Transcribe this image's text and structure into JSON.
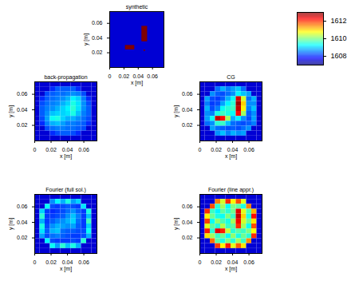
{
  "chart_data": [
    {
      "type": "heatmap",
      "title": "synthetic",
      "x_label": "x [m]",
      "y_label": "y [m]",
      "xlim": [
        0,
        0.076
      ],
      "ylim": [
        0,
        0.076
      ],
      "xticks": [
        0,
        0.02,
        0.04,
        0.06
      ],
      "yticks": [
        0.02,
        0.04,
        0.06
      ],
      "shapes": [
        {
          "x1": 0,
          "x2": 0.076,
          "y1": 0,
          "y2": 0.076,
          "value": 1607.5
        },
        {
          "x1": 0.022,
          "x2": 0.035,
          "y1": 0.024,
          "y2": 0.03,
          "value": 1613
        },
        {
          "x1": 0.045,
          "x2": 0.053,
          "y1": 0.035,
          "y2": 0.056,
          "value": 1613
        },
        {
          "x1": 0.048,
          "x2": 0.05,
          "y1": 0.022,
          "y2": 0.024,
          "value": 1613
        }
      ]
    },
    {
      "type": "heatmap",
      "title": "back-propagation",
      "x_label": "x [m]",
      "y_label": "y [m]",
      "xlim": [
        0,
        0.076
      ],
      "ylim": [
        0,
        0.076
      ],
      "xticks": [
        0,
        0.02,
        0.04,
        0.06
      ],
      "yticks": [
        0.02,
        0.04,
        0.06
      ],
      "z": [
        [
          1607.5,
          1607.5,
          1607.5,
          1607.5,
          1607.5,
          1607.5,
          1607.5,
          1607.5,
          1607.5,
          1607.5,
          1607.5,
          1607.5
        ],
        [
          1607.5,
          1607.5,
          1607.5,
          1608,
          1608.3,
          1608.3,
          1608.3,
          1608.3,
          1608,
          1607.5,
          1607.5,
          1607.5
        ],
        [
          1607.5,
          1607.5,
          1608.2,
          1608.3,
          1608.4,
          1608.4,
          1608.5,
          1608.6,
          1608.5,
          1608.2,
          1607.5,
          1607.5
        ],
        [
          1607.5,
          1608,
          1608.3,
          1608.4,
          1608.5,
          1608.6,
          1608.8,
          1609.2,
          1609,
          1608.5,
          1608,
          1607.5
        ],
        [
          1607.5,
          1608.2,
          1608.4,
          1608.5,
          1608.6,
          1608.8,
          1609,
          1609.4,
          1609.1,
          1608.6,
          1608.2,
          1607.5
        ],
        [
          1607.5,
          1608.3,
          1608.5,
          1608.6,
          1608.8,
          1609,
          1609.2,
          1609.5,
          1609.1,
          1608.6,
          1608.3,
          1607.5
        ],
        [
          1607.5,
          1608.3,
          1608.6,
          1608.9,
          1609,
          1609,
          1609.1,
          1609.4,
          1608.9,
          1608.5,
          1608.3,
          1607.5
        ],
        [
          1607.5,
          1608.2,
          1608.7,
          1609.3,
          1609.4,
          1609,
          1608.8,
          1608.8,
          1608.6,
          1608.4,
          1608.2,
          1607.5
        ],
        [
          1607.5,
          1608,
          1608.5,
          1608.8,
          1608.9,
          1608.7,
          1608.5,
          1608.5,
          1608.4,
          1608.3,
          1608,
          1607.5
        ],
        [
          1607.5,
          1607.5,
          1608.2,
          1608.4,
          1608.5,
          1608.5,
          1608.4,
          1608.4,
          1608.3,
          1608.2,
          1607.5,
          1607.5
        ],
        [
          1607.5,
          1607.5,
          1607.5,
          1608,
          1608.2,
          1608.3,
          1608.3,
          1608.2,
          1608,
          1607.5,
          1607.5,
          1607.5
        ],
        [
          1607.5,
          1607.5,
          1607.5,
          1607.5,
          1607.5,
          1607.5,
          1607.5,
          1607.5,
          1607.5,
          1607.5,
          1607.5,
          1607.5
        ]
      ]
    },
    {
      "type": "heatmap",
      "title": "CG",
      "x_label": "x [m]",
      "y_label": "y [m]",
      "xlim": [
        0,
        0.076
      ],
      "ylim": [
        0,
        0.076
      ],
      "xticks": [
        0,
        0.02,
        0.04,
        0.06
      ],
      "yticks": [
        0.02,
        0.04,
        0.06
      ],
      "z": [
        [
          1607.5,
          1607.5,
          1607.5,
          1607.5,
          1607.5,
          1607.5,
          1607.5,
          1607.5,
          1607.5,
          1607.5,
          1607.5,
          1607.5
        ],
        [
          1607.5,
          1607.5,
          1607.5,
          1608.4,
          1608.8,
          1608.5,
          1608.7,
          1608.9,
          1608.4,
          1607.5,
          1607.5,
          1607.5
        ],
        [
          1607.5,
          1607.5,
          1608.6,
          1608.3,
          1608.2,
          1608.4,
          1608.6,
          1609.2,
          1608.9,
          1608.7,
          1607.5,
          1607.5
        ],
        [
          1607.5,
          1608.7,
          1608.2,
          1608.1,
          1608.3,
          1608.8,
          1609.3,
          1612.5,
          1610.5,
          1608.4,
          1608.8,
          1607.5
        ],
        [
          1607.5,
          1608.5,
          1608.1,
          1608.2,
          1608.7,
          1609.2,
          1609.5,
          1612.8,
          1611,
          1608.6,
          1608.6,
          1607.5
        ],
        [
          1607.5,
          1608.8,
          1608.2,
          1608.5,
          1609.3,
          1609.5,
          1609.6,
          1612.6,
          1610.8,
          1608.5,
          1608.9,
          1607.5
        ],
        [
          1607.5,
          1608.6,
          1608.5,
          1609.4,
          1609.6,
          1609.4,
          1609.3,
          1612.2,
          1610.2,
          1608.3,
          1608.6,
          1607.5
        ],
        [
          1607.5,
          1608.7,
          1609.3,
          1612.6,
          1612.2,
          1610.2,
          1608.8,
          1609.2,
          1608.6,
          1608.2,
          1608.7,
          1607.5
        ],
        [
          1607.5,
          1608.4,
          1608.6,
          1609.5,
          1609.6,
          1608.9,
          1608.4,
          1608.3,
          1608.2,
          1608.3,
          1608.5,
          1607.5
        ],
        [
          1607.5,
          1607.5,
          1608.7,
          1608.4,
          1608.3,
          1608.2,
          1608.3,
          1608.2,
          1608.4,
          1608.6,
          1607.5,
          1607.5
        ],
        [
          1607.5,
          1607.5,
          1607.5,
          1608.6,
          1608.9,
          1608.5,
          1608.8,
          1608.6,
          1608.7,
          1607.5,
          1607.5,
          1607.5
        ],
        [
          1607.5,
          1607.5,
          1607.5,
          1607.5,
          1607.5,
          1607.5,
          1607.5,
          1607.5,
          1607.5,
          1607.5,
          1607.5,
          1607.5
        ]
      ]
    },
    {
      "type": "heatmap",
      "title": "Fourier (full sol.)",
      "x_label": "x [m]",
      "y_label": "y [m]",
      "xlim": [
        0,
        0.076
      ],
      "ylim": [
        0,
        0.076
      ],
      "xticks": [
        0,
        0.02,
        0.04,
        0.06
      ],
      "yticks": [
        0.02,
        0.04,
        0.06
      ],
      "z": [
        [
          1607.5,
          1607.5,
          1607.5,
          1607.5,
          1607.5,
          1607.5,
          1607.5,
          1607.5,
          1607.5,
          1607.5,
          1607.5,
          1607.5
        ],
        [
          1607.5,
          1607.5,
          1607.5,
          1608.6,
          1609.2,
          1608.8,
          1609.4,
          1608.7,
          1609,
          1607.5,
          1607.5,
          1607.5
        ],
        [
          1607.5,
          1607.5,
          1609.3,
          1608.2,
          1608.1,
          1608.2,
          1608.3,
          1608.2,
          1608.1,
          1609.1,
          1607.5,
          1607.5
        ],
        [
          1607.5,
          1609,
          1608.1,
          1608,
          1608.1,
          1608.2,
          1608.4,
          1608.6,
          1608.3,
          1608.1,
          1609.4,
          1607.5
        ],
        [
          1607.5,
          1609.5,
          1608.1,
          1608.1,
          1608.2,
          1608.3,
          1608.6,
          1608.9,
          1608.5,
          1608.1,
          1608.9,
          1607.5
        ],
        [
          1607.5,
          1608.8,
          1608.1,
          1608.3,
          1608.5,
          1608.6,
          1608.8,
          1609,
          1608.4,
          1608.1,
          1609.6,
          1607.5
        ],
        [
          1607.5,
          1609.4,
          1608.2,
          1608.6,
          1608.8,
          1608.7,
          1608.6,
          1608.7,
          1608.3,
          1608.1,
          1609,
          1607.5
        ],
        [
          1607.5,
          1609.1,
          1608.3,
          1608.8,
          1608.9,
          1608.4,
          1608.3,
          1608.3,
          1608.2,
          1608.2,
          1609.3,
          1607.5
        ],
        [
          1607.5,
          1608.7,
          1608.2,
          1608.4,
          1608.5,
          1608.3,
          1608.2,
          1608.1,
          1608.1,
          1608.2,
          1608.8,
          1607.5
        ],
        [
          1607.5,
          1607.5,
          1609.2,
          1608.2,
          1608.1,
          1608.1,
          1608.1,
          1608.2,
          1608.1,
          1609.5,
          1607.5,
          1607.5
        ],
        [
          1607.5,
          1607.5,
          1607.5,
          1609.3,
          1608.7,
          1609.5,
          1608.9,
          1609.4,
          1608.8,
          1607.5,
          1607.5,
          1607.5
        ],
        [
          1607.5,
          1607.5,
          1607.5,
          1607.5,
          1607.5,
          1607.5,
          1607.5,
          1607.5,
          1607.5,
          1607.5,
          1607.5,
          1607.5
        ]
      ]
    },
    {
      "type": "heatmap",
      "title": "Fourier (line appr.)",
      "x_label": "x [m]",
      "y_label": "y [m]",
      "xlim": [
        0,
        0.076
      ],
      "ylim": [
        0,
        0.076
      ],
      "xticks": [
        0,
        0.02,
        0.04,
        0.06
      ],
      "yticks": [
        0.02,
        0.04,
        0.06
      ],
      "z": [
        [
          1607.5,
          1607.5,
          1607.5,
          1607.5,
          1607.5,
          1607.5,
          1607.5,
          1607.5,
          1607.5,
          1607.5,
          1607.5,
          1607.5
        ],
        [
          1607.5,
          1607.5,
          1607.5,
          1611.5,
          1610.5,
          1612,
          1610.8,
          1611.8,
          1610.6,
          1607.5,
          1607.5,
          1607.5
        ],
        [
          1607.5,
          1607.5,
          1611.8,
          1609.5,
          1610.2,
          1609.3,
          1610,
          1609.8,
          1609.4,
          1611.5,
          1607.5,
          1607.5
        ],
        [
          1607.5,
          1612,
          1609.6,
          1609.2,
          1609.8,
          1609.5,
          1609.9,
          1612.4,
          1610.6,
          1609.7,
          1611.2,
          1607.5
        ],
        [
          1607.5,
          1610.8,
          1609.9,
          1609.4,
          1609.3,
          1610,
          1609.6,
          1612.6,
          1611,
          1609.4,
          1612.2,
          1607.5
        ],
        [
          1607.5,
          1611.9,
          1609.3,
          1610.1,
          1609.7,
          1609.4,
          1610.2,
          1612.3,
          1610.5,
          1609.9,
          1610.9,
          1607.5
        ],
        [
          1607.5,
          1610.6,
          1609.8,
          1609.5,
          1610.3,
          1609.6,
          1609.8,
          1612,
          1610.2,
          1609.3,
          1611.8,
          1607.5
        ],
        [
          1607.5,
          1612.1,
          1609.5,
          1612.4,
          1612.1,
          1610.4,
          1609.5,
          1609.8,
          1609.6,
          1610,
          1610.7,
          1607.5
        ],
        [
          1607.5,
          1610.9,
          1610.2,
          1609.6,
          1609.9,
          1609.3,
          1610.1,
          1609.4,
          1609.9,
          1609.5,
          1612,
          1607.5
        ],
        [
          1607.5,
          1607.5,
          1611.6,
          1609.8,
          1609.4,
          1610,
          1609.5,
          1610.2,
          1609.6,
          1611.4,
          1607.5,
          1607.5
        ],
        [
          1607.5,
          1607.5,
          1607.5,
          1611.9,
          1610.8,
          1612.1,
          1610.6,
          1611.7,
          1610.9,
          1607.5,
          1607.5,
          1607.5
        ],
        [
          1607.5,
          1607.5,
          1607.5,
          1607.5,
          1607.5,
          1607.5,
          1607.5,
          1607.5,
          1607.5,
          1607.5,
          1607.5,
          1607.5
        ]
      ]
    },
    {
      "type": "colorbar",
      "zlim": [
        1607,
        1613
      ],
      "zticks": [
        1608,
        1610,
        1612
      ]
    }
  ]
}
